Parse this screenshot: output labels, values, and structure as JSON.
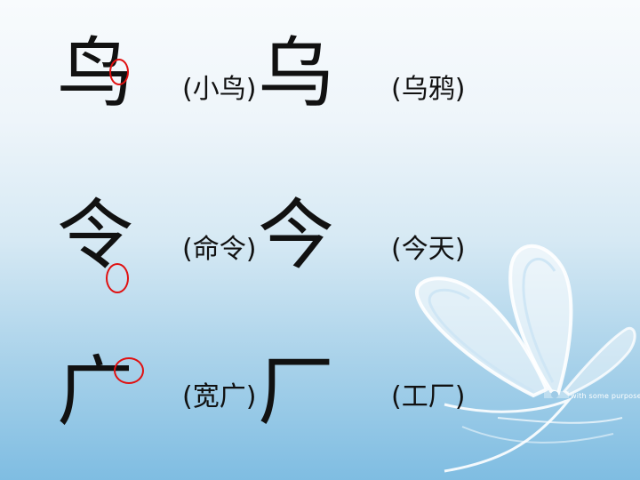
{
  "rows": [
    {
      "char_a": "鸟",
      "hint_a": "(小鸟)",
      "char_b": "乌",
      "hint_b": "(乌鸦)"
    },
    {
      "char_a": "令",
      "hint_a": "(命令)",
      "char_b": "今",
      "hint_b": "(今天)"
    },
    {
      "char_a": "广",
      "hint_a": "(宽广)",
      "char_b": "厂",
      "hint_b": "(工厂)"
    }
  ],
  "decoration": {
    "tagline": "with some purpose",
    "circle_color": "#e01010"
  }
}
